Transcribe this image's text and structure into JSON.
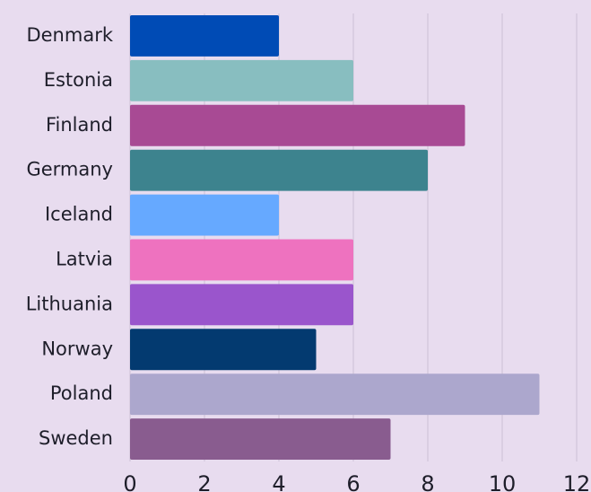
{
  "chart_data": {
    "type": "barh",
    "categories": [
      "Denmark",
      "Estonia",
      "Finland",
      "Germany",
      "Iceland",
      "Latvia",
      "Lithuania",
      "Norway",
      "Poland",
      "Sweden"
    ],
    "values": [
      4,
      6,
      9,
      8,
      4,
      6,
      6,
      5,
      11,
      7
    ],
    "colors": [
      "#004bb5",
      "#88bec0",
      "#a84a94",
      "#3d838e",
      "#66a9ff",
      "#ee72bf",
      "#9a55cc",
      "#033a70",
      "#aca7cd",
      "#895c8f"
    ],
    "xlim": [
      0,
      12
    ],
    "xticks": [
      0,
      2,
      4,
      6,
      8,
      10,
      12
    ],
    "grid": true
  }
}
